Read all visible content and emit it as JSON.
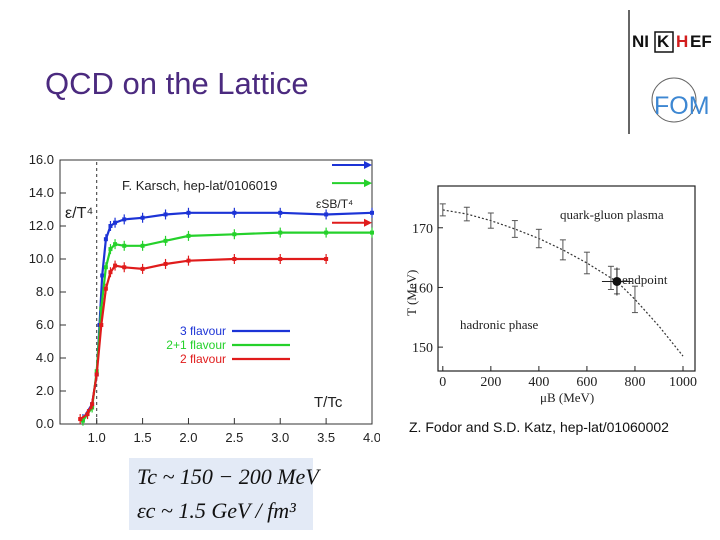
{
  "slide": {
    "title": "QCD on the Lattice"
  },
  "logo": {
    "text_pre": "NI",
    "text_box": "K",
    "text_mid": "H",
    "text_post": "EF",
    "fom": "FOM"
  },
  "chart_data": [
    {
      "type": "line",
      "title": "F. Karsch, hep-lat/0106019",
      "ylabel": "ε/T⁴",
      "xlabel": "T/Tc",
      "sb_label": "εSB/T⁴",
      "xlim": [
        0.6,
        4.0
      ],
      "ylim": [
        0.0,
        16.0
      ],
      "x_ticks": [
        "1.0",
        "1.5",
        "2.0",
        "2.5",
        "3.0",
        "3.5",
        "4.0"
      ],
      "y_ticks": [
        "0.0",
        "2.0",
        "4.0",
        "6.0",
        "8.0",
        "10.0",
        "12.0",
        "14.0",
        "16.0"
      ],
      "series": [
        {
          "name": "3 flavour",
          "color": "#1c33d6",
          "x": [
            0.85,
            0.95,
            1.0,
            1.03,
            1.06,
            1.1,
            1.15,
            1.2,
            1.3,
            1.5,
            1.75,
            2.0,
            2.5,
            3.0,
            3.5,
            4.0
          ],
          "y": [
            0.3,
            1.2,
            3.0,
            6.0,
            9.0,
            11.2,
            12.0,
            12.2,
            12.4,
            12.5,
            12.7,
            12.8,
            12.8,
            12.8,
            12.7,
            12.8
          ],
          "sb_limit": 15.7
        },
        {
          "name": "2+1 flavour",
          "color": "#25d12b",
          "x": [
            0.85,
            0.95,
            1.0,
            1.05,
            1.1,
            1.15,
            1.2,
            1.3,
            1.5,
            1.75,
            2.0,
            2.5,
            3.0,
            3.5,
            4.0
          ],
          "y": [
            0.2,
            1.0,
            3.2,
            7.0,
            9.5,
            10.6,
            10.9,
            10.8,
            10.8,
            11.1,
            11.4,
            11.5,
            11.6,
            11.6,
            11.6
          ],
          "sb_limit": 14.6
        },
        {
          "name": "2 flavour",
          "color": "#e01b1b",
          "x": [
            0.82,
            0.9,
            0.95,
            1.0,
            1.05,
            1.1,
            1.15,
            1.2,
            1.3,
            1.5,
            1.75,
            2.0,
            2.5,
            3.0,
            3.5
          ],
          "y": [
            0.3,
            0.6,
            1.2,
            3.0,
            6.0,
            8.2,
            9.2,
            9.6,
            9.5,
            9.4,
            9.7,
            9.9,
            10.0,
            10.0,
            10.0
          ],
          "sb_limit": 12.2
        }
      ],
      "tc_line": 1.0
    },
    {
      "type": "line",
      "title": "Z. Fodor and S.D. Katz, hep-lat/01060002",
      "xlabel": "μB (MeV)",
      "ylabel": "T (MeV)",
      "x_ticks": [
        "0",
        "200",
        "400",
        "600",
        "800",
        "1000"
      ],
      "y_ticks": [
        "150",
        "160",
        "170"
      ],
      "xlim": [
        -20,
        1050
      ],
      "ylim": [
        146,
        177
      ],
      "regions": [
        "quark-gluon plasma",
        "hadronic phase"
      ],
      "endpoint": {
        "label": "endpoint",
        "x": 725,
        "y": 161
      },
      "curve": {
        "x": [
          0,
          100,
          200,
          300,
          400,
          500,
          600,
          700,
          725,
          800,
          900,
          1000
        ],
        "y": [
          173,
          172.3,
          171.2,
          169.8,
          168.2,
          166.3,
          164.1,
          161.6,
          161,
          158,
          153.5,
          148.5
        ]
      }
    }
  ],
  "formula": {
    "line1": "Tc ~ 150 − 200 MeV",
    "line2": "εc ~ 1.5 GeV / fm³"
  }
}
